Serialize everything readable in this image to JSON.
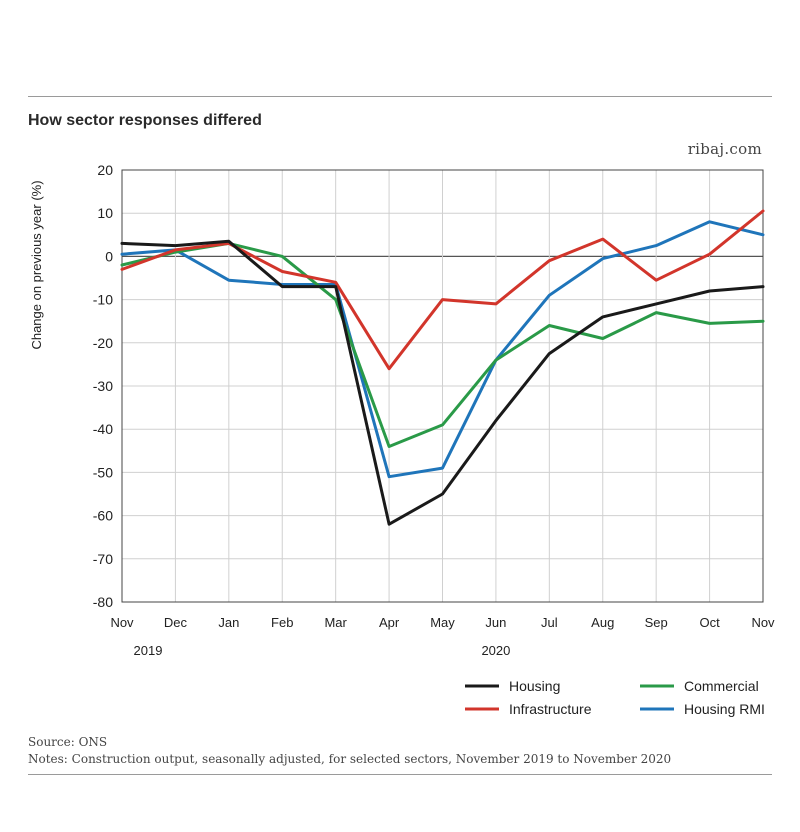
{
  "header": {
    "title": "How sector responses differed",
    "brand": "ribaj.com"
  },
  "footer": {
    "source": "Source: ONS",
    "notes": "Notes: Construction output, seasonally adjusted, for selected sectors, November 2019 to November 2020"
  },
  "chart_data": {
    "type": "line",
    "title": "How sector responses differed",
    "ylabel": "Change on previous year (%)",
    "xlabel": "",
    "ylim": [
      -80,
      20
    ],
    "yticks": [
      20,
      10,
      0,
      -10,
      -20,
      -30,
      -40,
      -50,
      -60,
      -70,
      -80
    ],
    "categories": [
      "Nov",
      "Dec",
      "Jan",
      "Feb",
      "Mar",
      "Apr",
      "May",
      "Jun",
      "Jul",
      "Aug",
      "Sep",
      "Oct",
      "Nov"
    ],
    "year_labels": [
      {
        "label": "2019",
        "category_index": 0
      },
      {
        "label": "2020",
        "category_index": 7
      }
    ],
    "grid": true,
    "legend_position": "bottom-right",
    "series": [
      {
        "name": "Housing",
        "color": "#1a1a1a",
        "values": [
          3,
          2.5,
          3.5,
          -7,
          -7,
          -62,
          -55,
          -38,
          -22.5,
          -14,
          -11,
          -8,
          -7
        ]
      },
      {
        "name": "Commercial",
        "color": "#2a9a48",
        "values": [
          -2,
          1,
          3,
          0,
          -10,
          -44,
          -39,
          -24,
          -16,
          -19,
          -13,
          -15.5,
          -15
        ]
      },
      {
        "name": "Infrastructure",
        "color": "#d2352b",
        "values": [
          -3,
          1.5,
          3,
          -3.5,
          -6,
          -26,
          -10,
          -11,
          -1,
          4,
          -5.5,
          0.5,
          10.5
        ]
      },
      {
        "name": "Housing RMI",
        "color": "#1f75ba",
        "values": [
          0.5,
          1.5,
          -5.5,
          -6.5,
          -6.5,
          -51,
          -49,
          -24,
          -9,
          -0.5,
          2.5,
          8,
          5
        ]
      }
    ]
  }
}
